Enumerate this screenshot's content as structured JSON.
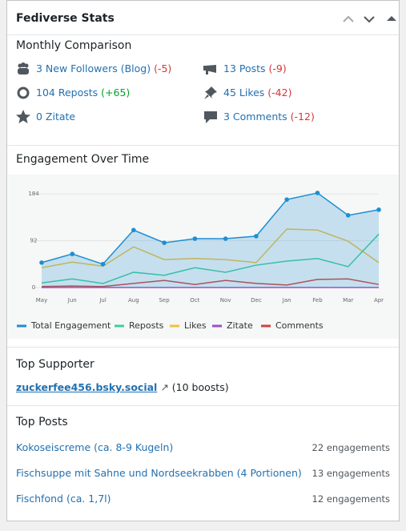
{
  "header": {
    "title": "Fediverse Stats"
  },
  "monthly": {
    "title": "Monthly Comparison",
    "items": [
      {
        "text": "3 New Followers (Blog)",
        "change": "(-5)"
      },
      {
        "text": "13 Posts",
        "change": "(-9)"
      },
      {
        "text": "104 Reposts",
        "change": "(+65)"
      },
      {
        "text": "45 Likes",
        "change": "(-42)"
      },
      {
        "text": "0 Zitate",
        "change": ""
      },
      {
        "text": "3 Comments",
        "change": "(-12)"
      }
    ]
  },
  "chart_data": {
    "type": "line",
    "title": "Engagement Over Time",
    "categories": [
      "May",
      "Jun",
      "Jul",
      "Aug",
      "Sep",
      "Oct",
      "Nov",
      "Dec",
      "Jan",
      "Feb",
      "Mar",
      "Apr"
    ],
    "series": [
      {
        "name": "Total Engagement",
        "color": "#1b8fd2",
        "values": [
          49,
          66,
          46,
          113,
          88,
          96,
          96,
          101,
          173,
          186,
          142,
          153
        ],
        "area": true,
        "markers": true
      },
      {
        "name": "Reposts",
        "color": "#3ccf9c",
        "values": [
          9,
          17,
          8,
          30,
          24,
          39,
          30,
          44,
          52,
          57,
          41,
          105
        ]
      },
      {
        "name": "Likes",
        "color": "#eec03d",
        "values": [
          39,
          50,
          42,
          80,
          55,
          57,
          55,
          49,
          115,
          113,
          91,
          49
        ]
      },
      {
        "name": "Zitate",
        "color": "#9b51c4",
        "values": [
          0,
          0,
          0,
          0,
          0,
          0,
          0,
          0,
          0,
          0,
          0,
          0
        ]
      },
      {
        "name": "Comments",
        "color": "#d0443c",
        "values": [
          2,
          3,
          2,
          8,
          14,
          6,
          14,
          8,
          5,
          16,
          17,
          6
        ]
      }
    ],
    "ylim": [
      0,
      200
    ],
    "yticks": [
      0,
      92,
      184
    ],
    "grid": true,
    "legend": "bottom"
  },
  "supporter": {
    "title": "Top Supporter",
    "name": "zuckerfee456.bsky.social",
    "detail": "(10 boosts)"
  },
  "posts": {
    "title": "Top Posts",
    "rows": [
      {
        "title": "Kokoseiscreme (ca. 8-9 Kugeln)",
        "count": "22 engagements"
      },
      {
        "title": "Fischsuppe mit Sahne und Nordseekrabben (4 Portionen)",
        "count": "13 engagements"
      },
      {
        "title": "Fischfond (ca. 1,7l)",
        "count": "12 engagements"
      }
    ]
  }
}
